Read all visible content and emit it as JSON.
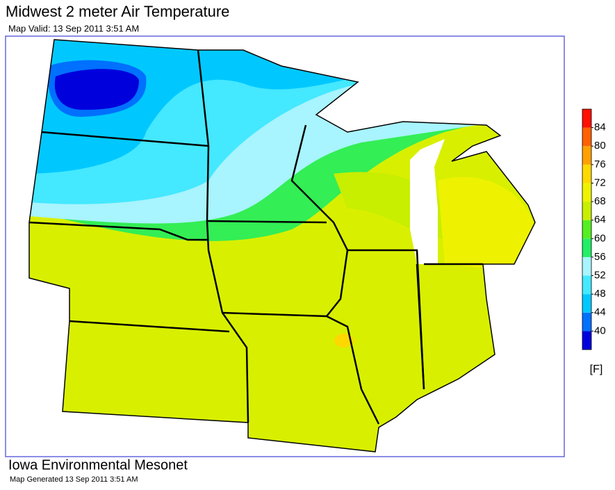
{
  "header": {
    "title": "Midwest 2 meter Air Temperature",
    "subtitle": "Map Valid: 13 Sep 2011 3:51 AM"
  },
  "legend": {
    "ticks": [
      40,
      44,
      48,
      52,
      56,
      60,
      64,
      68,
      72,
      76,
      80,
      84
    ],
    "colors": [
      "#0000dd",
      "#0070ff",
      "#00c8ff",
      "#44e8ff",
      "#a8f4ff",
      "#22ee66",
      "#55ee22",
      "#c8ee00",
      "#eef200",
      "#ffd800",
      "#ffa000",
      "#ff6000",
      "#ff1000"
    ],
    "unit": "[F]"
  },
  "footer": {
    "organization": "Iowa Environmental Mesonet",
    "generated": "Map Generated 13 Sep 2011 3:51 AM"
  }
}
